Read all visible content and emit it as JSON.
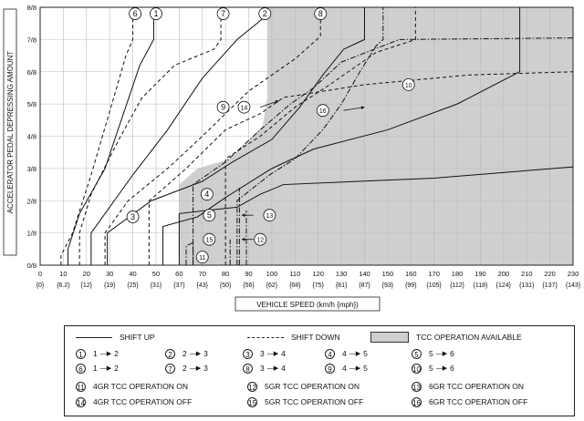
{
  "chart_data": {
    "type": "line",
    "ylabel": "ACCELERATOR PEDAL DEPRESSING AMOUNT",
    "xlabel": "VEHICLE SPEED (km/h {mph})",
    "xlim": [
      0,
      230
    ],
    "ylim": [
      0,
      8
    ],
    "x_ticks": [
      {
        "kmh": 0,
        "mph": "{0}"
      },
      {
        "kmh": 10,
        "mph": "{6.2}"
      },
      {
        "kmh": 20,
        "mph": "{12}"
      },
      {
        "kmh": 30,
        "mph": "{19}"
      },
      {
        "kmh": 40,
        "mph": "{25}"
      },
      {
        "kmh": 50,
        "mph": "{31}"
      },
      {
        "kmh": 60,
        "mph": "{37}"
      },
      {
        "kmh": 70,
        "mph": "{43}"
      },
      {
        "kmh": 80,
        "mph": "{50}"
      },
      {
        "kmh": 90,
        "mph": "{56}"
      },
      {
        "kmh": 100,
        "mph": "{62}"
      },
      {
        "kmh": 110,
        "mph": "{68}"
      },
      {
        "kmh": 120,
        "mph": "{75}"
      },
      {
        "kmh": 130,
        "mph": "{81}"
      },
      {
        "kmh": 140,
        "mph": "{87}"
      },
      {
        "kmh": 150,
        "mph": "{93}"
      },
      {
        "kmh": 160,
        "mph": "{99}"
      },
      {
        "kmh": 170,
        "mph": "{105}"
      },
      {
        "kmh": 180,
        "mph": "{112}"
      },
      {
        "kmh": 190,
        "mph": "{118}"
      },
      {
        "kmh": 200,
        "mph": "{124}"
      },
      {
        "kmh": 210,
        "mph": "{131}"
      },
      {
        "kmh": 220,
        "mph": "{137}"
      },
      {
        "kmh": 230,
        "mph": "{143}"
      }
    ],
    "y_ticks": [
      "0/8",
      "1/8",
      "2/8",
      "3/8",
      "4/8",
      "5/8",
      "6/8",
      "7/8",
      "8/8"
    ],
    "shaded_region_points": [
      [
        60,
        2.5
      ],
      [
        68,
        3.0
      ],
      [
        82,
        3.3
      ],
      [
        96,
        4.3
      ],
      [
        98,
        5.2
      ],
      [
        98,
        8
      ],
      [
        230,
        8
      ],
      [
        230,
        0
      ],
      [
        60,
        0
      ]
    ],
    "series": [
      {
        "name": "1",
        "style": "solid",
        "points": [
          [
            12,
            0
          ],
          [
            12,
            0.5
          ],
          [
            17,
            1.6
          ],
          [
            28,
            3.0
          ],
          [
            35,
            4.5
          ],
          [
            43,
            6.2
          ],
          [
            49,
            7.0
          ],
          [
            49,
            8
          ]
        ]
      },
      {
        "name": "2",
        "style": "solid",
        "points": [
          [
            22,
            0
          ],
          [
            22,
            1.0
          ],
          [
            30,
            1.8
          ],
          [
            40,
            2.8
          ],
          [
            55,
            4.2
          ],
          [
            70,
            5.8
          ],
          [
            85,
            7.0
          ],
          [
            97,
            7.7
          ],
          [
            97,
            8
          ]
        ]
      },
      {
        "name": "3",
        "style": "solid",
        "points": [
          [
            29,
            0
          ],
          [
            29,
            1.0
          ],
          [
            48,
            2.0
          ],
          [
            70,
            2.6
          ],
          [
            83,
            3.2
          ],
          [
            100,
            3.9
          ],
          [
            112,
            4.9
          ],
          [
            122,
            5.9
          ],
          [
            131,
            6.7
          ],
          [
            140,
            7.0
          ],
          [
            140,
            8
          ]
        ]
      },
      {
        "name": "4",
        "style": "solid",
        "points": [
          [
            53,
            0
          ],
          [
            53,
            1.2
          ],
          [
            68,
            1.5
          ],
          [
            80,
            2.1
          ],
          [
            100,
            3.0
          ],
          [
            118,
            3.6
          ],
          [
            150,
            4.2
          ],
          [
            180,
            5.0
          ],
          [
            207,
            6.0
          ],
          [
            207,
            8
          ]
        ]
      },
      {
        "name": "5",
        "style": "solid",
        "points": [
          [
            60,
            0
          ],
          [
            60,
            1.6
          ],
          [
            72,
            1.7
          ],
          [
            85,
            1.8
          ],
          [
            95,
            2.2
          ],
          [
            105,
            2.5
          ],
          [
            170,
            2.7
          ],
          [
            230,
            3.05
          ]
        ]
      },
      {
        "name": "6",
        "style": "dashed",
        "points": [
          [
            9,
            0
          ],
          [
            9,
            0.3
          ],
          [
            14,
            1.0
          ],
          [
            22,
            2.8
          ],
          [
            33,
            5.5
          ],
          [
            37,
            6.5
          ],
          [
            40,
            7.0
          ],
          [
            40,
            8
          ]
        ]
      },
      {
        "name": "7",
        "style": "dashed",
        "points": [
          [
            17,
            0
          ],
          [
            17,
            1.0
          ],
          [
            22,
            2.2
          ],
          [
            34,
            3.9
          ],
          [
            44,
            5.2
          ],
          [
            58,
            6.2
          ],
          [
            75,
            6.7
          ],
          [
            78,
            7.0
          ],
          [
            78,
            8
          ]
        ]
      },
      {
        "name": "8",
        "style": "dashed",
        "points": [
          [
            28,
            0
          ],
          [
            28,
            1.0
          ],
          [
            38,
            2.0
          ],
          [
            55,
            3.0
          ],
          [
            70,
            4.0
          ],
          [
            90,
            5.4
          ],
          [
            110,
            6.4
          ],
          [
            121,
            7.1
          ],
          [
            121,
            8
          ]
        ]
      },
      {
        "name": "9",
        "style": "dashed",
        "points": [
          [
            47,
            0
          ],
          [
            47,
            2.0
          ],
          [
            52,
            2.3
          ],
          [
            63,
            3.0
          ],
          [
            80,
            4.2
          ],
          [
            95,
            4.7
          ],
          [
            105,
            5.2
          ],
          [
            140,
            5.6
          ],
          [
            185,
            5.9
          ],
          [
            230,
            6.0
          ]
        ]
      },
      {
        "name": "10",
        "style": "dashed",
        "points": [
          [
            80,
            0
          ],
          [
            80,
            3.3
          ],
          [
            95,
            4.0
          ],
          [
            110,
            4.9
          ],
          [
            125,
            5.6
          ],
          [
            145,
            6.6
          ],
          [
            162,
            7.0
          ],
          [
            162,
            8
          ]
        ]
      },
      {
        "name": "11",
        "style": "dashdot",
        "points": [
          [
            63,
            0
          ],
          [
            63,
            0.6
          ],
          [
            66,
            0.7
          ],
          [
            66,
            0
          ]
        ]
      },
      {
        "name": "12",
        "style": "dashdot",
        "points": [
          [
            86,
            0
          ],
          [
            86,
            2.4
          ]
        ]
      },
      {
        "name": "13",
        "style": "dashdot",
        "points": [
          [
            89,
            0
          ],
          [
            89,
            1.7
          ]
        ]
      },
      {
        "name": "14",
        "style": "dashdot",
        "points": [
          [
            66,
            0
          ],
          [
            66,
            2.5
          ],
          [
            80,
            3.2
          ],
          [
            95,
            4.2
          ],
          [
            108,
            5.0
          ],
          [
            118,
            5.5
          ],
          [
            130,
            6.3
          ],
          [
            155,
            7.0
          ],
          [
            230,
            7.05
          ]
        ]
      },
      {
        "name": "15",
        "style": "dashdot",
        "points": [
          [
            85,
            0
          ],
          [
            85,
            2.0
          ],
          [
            99,
            2.8
          ],
          [
            110,
            3.3
          ],
          [
            122,
            4.2
          ],
          [
            130,
            5.0
          ],
          [
            138,
            6.0
          ],
          [
            145,
            6.8
          ],
          [
            148,
            7.0
          ],
          [
            148,
            8
          ]
        ]
      },
      {
        "name": "16",
        "style": "dashdot",
        "points": [
          [
            82,
            0
          ],
          [
            82,
            0.8
          ]
        ]
      }
    ],
    "curve_labels": [
      {
        "num": "1",
        "x": 50,
        "y": 7.8
      },
      {
        "num": "2",
        "x": 97,
        "y": 7.8
      },
      {
        "num": "3",
        "x": 40,
        "y": 1.5
      },
      {
        "num": "4",
        "x": 72,
        "y": 2.2
      },
      {
        "num": "5",
        "x": 73,
        "y": 1.55
      },
      {
        "num": "6",
        "x": 41,
        "y": 7.8
      },
      {
        "num": "7",
        "x": 79,
        "y": 7.8
      },
      {
        "num": "8",
        "x": 121,
        "y": 7.8
      },
      {
        "num": "9",
        "x": 79,
        "y": 4.9
      },
      {
        "num": "10",
        "x": 159,
        "y": 5.6
      },
      {
        "num": "11",
        "x": 70,
        "y": 0.25
      },
      {
        "num": "12",
        "x": 95,
        "y": 0.8
      },
      {
        "num": "13",
        "x": 99,
        "y": 1.55
      },
      {
        "num": "14",
        "x": 88,
        "y": 4.9
      },
      {
        "num": "15",
        "x": 73,
        "y": 0.8
      },
      {
        "num": "16",
        "x": 122,
        "y": 4.8
      }
    ],
    "label_arrows": [
      {
        "from": [
          95,
          4.9
        ],
        "to": [
          103,
          5.1
        ]
      },
      {
        "from": [
          131,
          4.8
        ],
        "to": [
          140,
          4.9
        ]
      },
      {
        "from": [
          92,
          1.55
        ],
        "to": [
          87,
          1.55
        ]
      },
      {
        "from": [
          92,
          0.8
        ],
        "to": [
          87,
          0.8
        ]
      }
    ]
  },
  "legend": {
    "shift_up": "SHIFT UP",
    "shift_down": "SHIFT DOWN",
    "tcc_available": "TCC OPERATION AVAILABLE",
    "items": [
      {
        "num": "1",
        "from": "1",
        "to": "2"
      },
      {
        "num": "2",
        "from": "2",
        "to": "3"
      },
      {
        "num": "3",
        "from": "3",
        "to": "4"
      },
      {
        "num": "4",
        "from": "4",
        "to": "5"
      },
      {
        "num": "5",
        "from": "5",
        "to": "6"
      },
      {
        "num": "6",
        "from": "1",
        "to": "2"
      },
      {
        "num": "7",
        "from": "2",
        "to": "3"
      },
      {
        "num": "8",
        "from": "3",
        "to": "4"
      },
      {
        "num": "9",
        "from": "4",
        "to": "5"
      },
      {
        "num": "10",
        "from": "5",
        "to": "6"
      }
    ],
    "tcc": [
      {
        "num": "11",
        "label": "4GR TCC OPERATION ON"
      },
      {
        "num": "12",
        "label": "5GR TCC OPERATION ON"
      },
      {
        "num": "13",
        "label": "6GR TCC OPERATION ON"
      },
      {
        "num": "14",
        "label": "4GR TCC OPERATION OFF"
      },
      {
        "num": "15",
        "label": "5GR TCC OPERATION OFF"
      },
      {
        "num": "16",
        "label": "6GR TCC OPERATION OFF"
      }
    ]
  }
}
